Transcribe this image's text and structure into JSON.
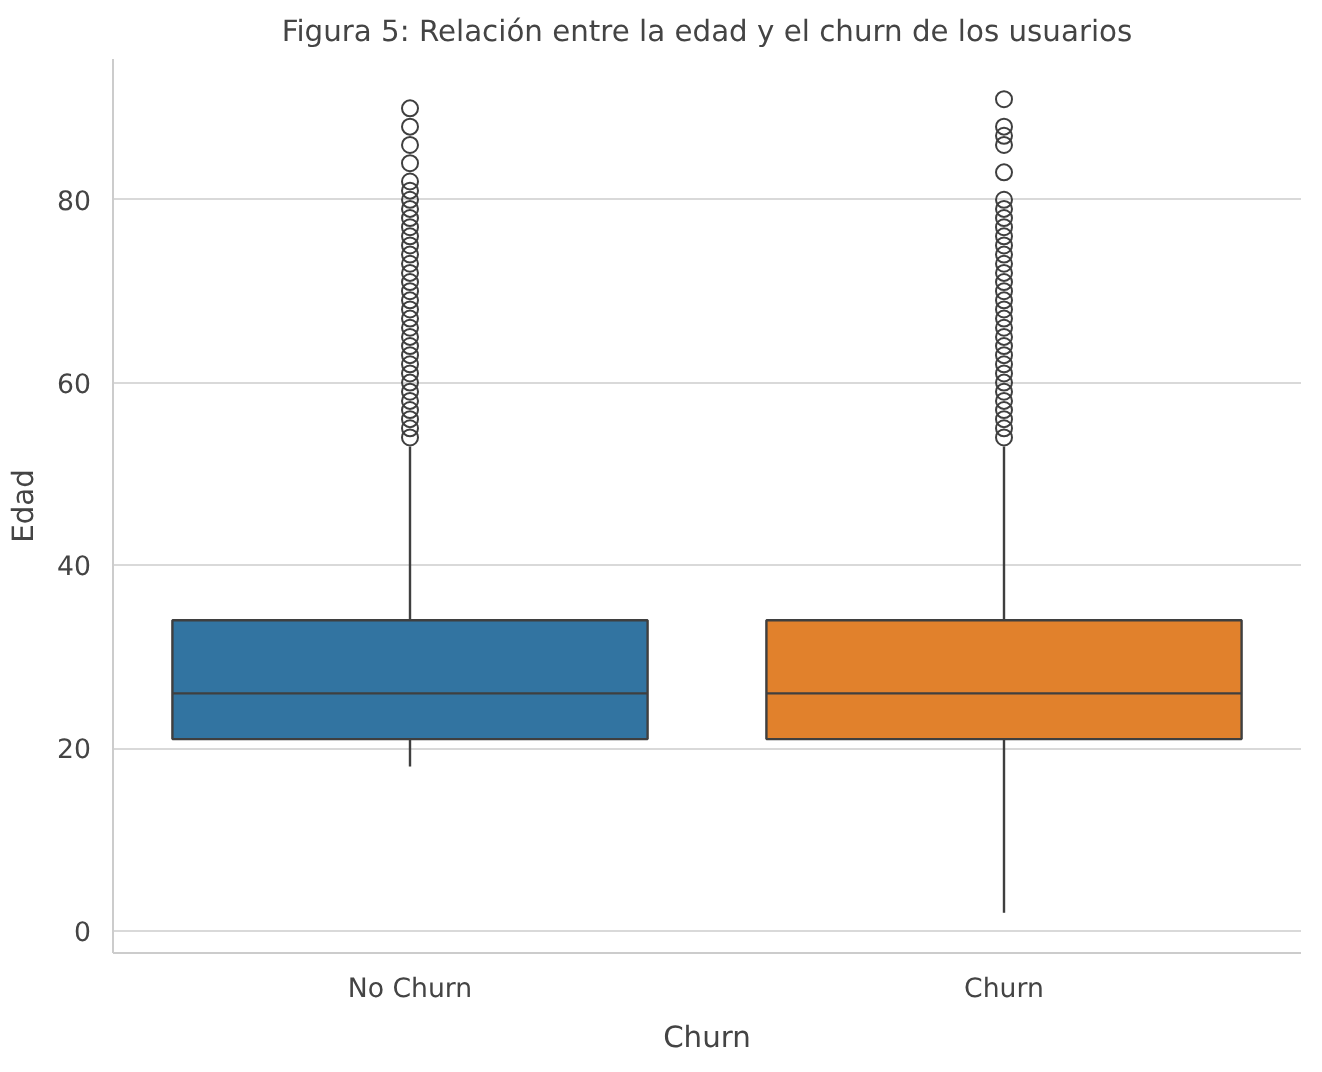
{
  "chart_data": {
    "type": "box",
    "title": "Figura 5: Relación entre la edad y el churn de los usuarios",
    "xlabel": "Churn",
    "ylabel": "Edad",
    "categories": [
      "No Churn",
      "Churn"
    ],
    "colors": [
      "#3274a1",
      "#e1812c"
    ],
    "boxes": [
      {
        "low": 18,
        "q1": 21,
        "median": 26,
        "q3": 34,
        "high": 53,
        "outliers": [
          54,
          55,
          56,
          57,
          58,
          59,
          60,
          61,
          62,
          63,
          64,
          65,
          66,
          67,
          68,
          69,
          70,
          71,
          72,
          73,
          74,
          75,
          76,
          77,
          78,
          79,
          80,
          81,
          82,
          84,
          86,
          88,
          90
        ]
      },
      {
        "low": 2,
        "q1": 21,
        "median": 26,
        "q3": 34,
        "high": 53,
        "outliers": [
          54,
          55,
          56,
          57,
          58,
          59,
          60,
          61,
          62,
          63,
          64,
          65,
          66,
          67,
          68,
          69,
          70,
          71,
          72,
          73,
          74,
          75,
          76,
          77,
          78,
          79,
          80,
          83,
          86,
          87,
          88,
          91
        ]
      }
    ],
    "ylim": [
      -2.4,
      95.4
    ],
    "yticks": [
      0,
      20,
      40,
      60,
      80
    ],
    "grid": "y",
    "marker": "circle"
  }
}
